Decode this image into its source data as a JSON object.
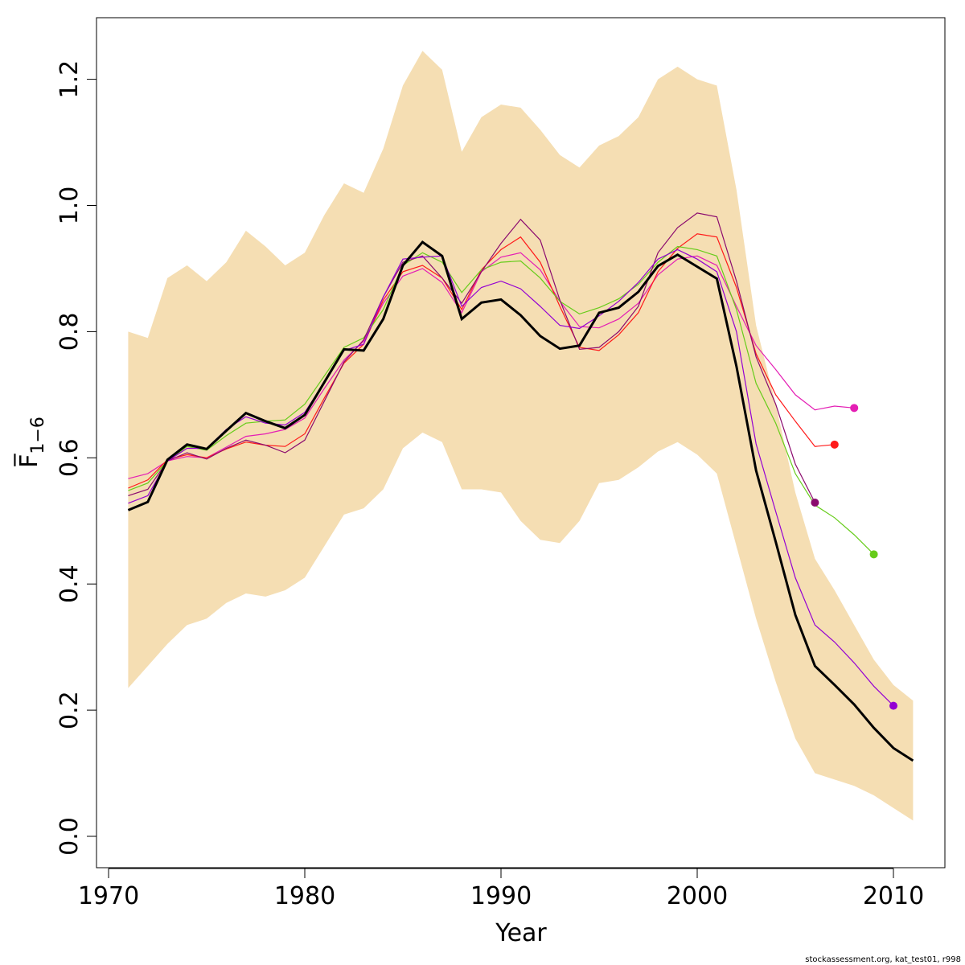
{
  "chart_data": {
    "type": "line",
    "xlabel": "Year",
    "ylabel": "F̅",
    "ylabel_subscript": "1−6",
    "footer_note": "stockassessment.org, kat_test01, r998",
    "xlim": [
      1970,
      2012
    ],
    "ylim": [
      0.0,
      1.25
    ],
    "x_ticks": [
      1970,
      1980,
      1990,
      2000,
      2010
    ],
    "y_ticks": [
      0.0,
      0.2,
      0.4,
      0.6,
      0.8,
      1.0,
      1.2
    ],
    "y_tick_labels": [
      "0.0",
      "0.2",
      "0.4",
      "0.6",
      "0.8",
      "1.0",
      "1.2"
    ],
    "x_tick_labels": [
      "1970",
      "1980",
      "1990",
      "2000",
      "2010"
    ],
    "grid": false,
    "band": {
      "color": "#F5DEB3",
      "x": [
        1971,
        1972,
        1973,
        1974,
        1975,
        1976,
        1977,
        1978,
        1979,
        1980,
        1981,
        1982,
        1983,
        1984,
        1985,
        1986,
        1987,
        1988,
        1989,
        1990,
        1991,
        1992,
        1993,
        1994,
        1995,
        1996,
        1997,
        1998,
        1999,
        2000,
        2001,
        2002,
        2003,
        2004,
        2005,
        2006,
        2007,
        2008,
        2009,
        2010,
        2011
      ],
      "upper": [
        0.8,
        0.79,
        0.885,
        0.905,
        0.88,
        0.91,
        0.96,
        0.935,
        0.905,
        0.925,
        0.985,
        1.035,
        1.02,
        1.09,
        1.19,
        1.245,
        1.215,
        1.085,
        1.14,
        1.16,
        1.155,
        1.12,
        1.08,
        1.06,
        1.095,
        1.11,
        1.14,
        1.2,
        1.22,
        1.2,
        1.19,
        1.025,
        0.81,
        0.685,
        0.545,
        0.44,
        0.39,
        0.335,
        0.28,
        0.24,
        0.215
      ],
      "lower": [
        0.235,
        0.27,
        0.305,
        0.335,
        0.345,
        0.37,
        0.385,
        0.38,
        0.39,
        0.41,
        0.46,
        0.51,
        0.52,
        0.55,
        0.615,
        0.64,
        0.625,
        0.55,
        0.55,
        0.545,
        0.5,
        0.47,
        0.465,
        0.5,
        0.56,
        0.565,
        0.585,
        0.61,
        0.625,
        0.605,
        0.575,
        0.46,
        0.345,
        0.245,
        0.155,
        0.1,
        0.09,
        0.08,
        0.065,
        0.045,
        0.025
      ]
    },
    "retro_series": [
      {
        "color": "#E41EB4",
        "end_marker": true,
        "x": [
          1971,
          1972,
          1973,
          1974,
          1975,
          1976,
          1977,
          1978,
          1979,
          1980,
          1981,
          1982,
          1983,
          1984,
          1985,
          1986,
          1987,
          1988,
          1989,
          1990,
          1991,
          1992,
          1993,
          1994,
          1995,
          1996,
          1997,
          1998,
          1999,
          2000,
          2001,
          2002,
          2003,
          2004,
          2005,
          2006,
          2007,
          2008
        ],
        "values": [
          0.567,
          0.575,
          0.595,
          0.602,
          0.6,
          0.617,
          0.634,
          0.638,
          0.645,
          0.663,
          0.71,
          0.755,
          0.785,
          0.845,
          0.888,
          0.9,
          0.878,
          0.83,
          0.895,
          0.918,
          0.925,
          0.898,
          0.848,
          0.808,
          0.806,
          0.82,
          0.845,
          0.89,
          0.915,
          0.92,
          0.905,
          0.84,
          0.778,
          0.74,
          0.7,
          0.676,
          0.682,
          0.679
        ]
      },
      {
        "color": "#FF1A1A",
        "end_marker": true,
        "x": [
          1971,
          1972,
          1973,
          1974,
          1975,
          1976,
          1977,
          1978,
          1979,
          1980,
          1981,
          1982,
          1983,
          1984,
          1985,
          1986,
          1987,
          1988,
          1989,
          1990,
          1991,
          1992,
          1993,
          1994,
          1995,
          1996,
          1997,
          1998,
          1999,
          2000,
          2001,
          2002,
          2003,
          2004,
          2005,
          2006,
          2007
        ],
        "values": [
          0.552,
          0.565,
          0.597,
          0.605,
          0.6,
          0.614,
          0.625,
          0.62,
          0.618,
          0.638,
          0.695,
          0.75,
          0.78,
          0.85,
          0.895,
          0.905,
          0.885,
          0.835,
          0.898,
          0.93,
          0.95,
          0.91,
          0.84,
          0.775,
          0.77,
          0.795,
          0.83,
          0.895,
          0.932,
          0.955,
          0.95,
          0.87,
          0.765,
          0.7,
          0.658,
          0.618,
          0.621
        ]
      },
      {
        "color": "#66CC1A",
        "end_marker": true,
        "x": [
          1971,
          1972,
          1973,
          1974,
          1975,
          1976,
          1977,
          1978,
          1979,
          1980,
          1981,
          1982,
          1983,
          1984,
          1985,
          1986,
          1987,
          1988,
          1989,
          1990,
          1991,
          1992,
          1993,
          1994,
          1995,
          1996,
          1997,
          1998,
          1999,
          2000,
          2001,
          2002,
          2003,
          2004,
          2005,
          2006,
          2007,
          2008,
          2009
        ],
        "values": [
          0.548,
          0.56,
          0.595,
          0.618,
          0.612,
          0.635,
          0.655,
          0.658,
          0.66,
          0.685,
          0.73,
          0.775,
          0.79,
          0.835,
          0.905,
          0.925,
          0.91,
          0.862,
          0.898,
          0.91,
          0.912,
          0.885,
          0.848,
          0.828,
          0.838,
          0.852,
          0.875,
          0.91,
          0.935,
          0.93,
          0.92,
          0.835,
          0.718,
          0.655,
          0.575,
          0.525,
          0.505,
          0.478,
          0.447
        ]
      },
      {
        "color": "#8B0A6E",
        "end_marker": true,
        "x": [
          1971,
          1972,
          1973,
          1974,
          1975,
          1976,
          1977,
          1978,
          1979,
          1980,
          1981,
          1982,
          1983,
          1984,
          1985,
          1986,
          1987,
          1988,
          1989,
          1990,
          1991,
          1992,
          1993,
          1994,
          1995,
          1996,
          1997,
          1998,
          1999,
          2000,
          2001,
          2002,
          2003,
          2004,
          2005,
          2006
        ],
        "values": [
          0.54,
          0.55,
          0.595,
          0.608,
          0.598,
          0.615,
          0.628,
          0.62,
          0.608,
          0.628,
          0.69,
          0.752,
          0.787,
          0.855,
          0.91,
          0.92,
          0.885,
          0.845,
          0.895,
          0.94,
          0.978,
          0.945,
          0.85,
          0.772,
          0.775,
          0.8,
          0.84,
          0.925,
          0.965,
          0.988,
          0.982,
          0.88,
          0.76,
          0.685,
          0.59,
          0.529
        ]
      },
      {
        "color": "#9400D3",
        "end_marker": true,
        "x": [
          1971,
          1972,
          1973,
          1974,
          1975,
          1976,
          1977,
          1978,
          1979,
          1980,
          1981,
          1982,
          1983,
          1984,
          1985,
          1986,
          1987,
          1988,
          1989,
          1990,
          1991,
          1992,
          1993,
          1994,
          1995,
          1996,
          1997,
          1998,
          1999,
          2000,
          2001,
          2002,
          2003,
          2004,
          2005,
          2006,
          2007,
          2008,
          2009,
          2010
        ],
        "values": [
          0.528,
          0.54,
          0.595,
          0.615,
          0.615,
          0.645,
          0.665,
          0.655,
          0.652,
          0.672,
          0.72,
          0.77,
          0.78,
          0.855,
          0.915,
          0.918,
          0.92,
          0.84,
          0.87,
          0.88,
          0.868,
          0.84,
          0.81,
          0.805,
          0.825,
          0.848,
          0.878,
          0.915,
          0.93,
          0.915,
          0.895,
          0.8,
          0.622,
          0.515,
          0.41,
          0.335,
          0.308,
          0.275,
          0.238,
          0.207
        ]
      }
    ],
    "series": [
      {
        "color": "#000000",
        "x": [
          1971,
          1972,
          1973,
          1974,
          1975,
          1976,
          1977,
          1978,
          1979,
          1980,
          1981,
          1982,
          1983,
          1984,
          1985,
          1986,
          1987,
          1988,
          1989,
          1990,
          1991,
          1992,
          1993,
          1994,
          1995,
          1996,
          1997,
          1998,
          1999,
          2000,
          2001,
          2002,
          2003,
          2004,
          2005,
          2006,
          2007,
          2008,
          2009,
          2010,
          2011
        ],
        "values": [
          0.517,
          0.53,
          0.597,
          0.621,
          0.614,
          0.643,
          0.671,
          0.658,
          0.647,
          0.668,
          0.72,
          0.772,
          0.77,
          0.82,
          0.905,
          0.942,
          0.92,
          0.82,
          0.846,
          0.851,
          0.826,
          0.793,
          0.773,
          0.778,
          0.83,
          0.838,
          0.863,
          0.904,
          0.922,
          0.903,
          0.884,
          0.745,
          0.58,
          0.467,
          0.351,
          0.27,
          0.24,
          0.209,
          0.172,
          0.14,
          0.12
        ]
      }
    ]
  }
}
